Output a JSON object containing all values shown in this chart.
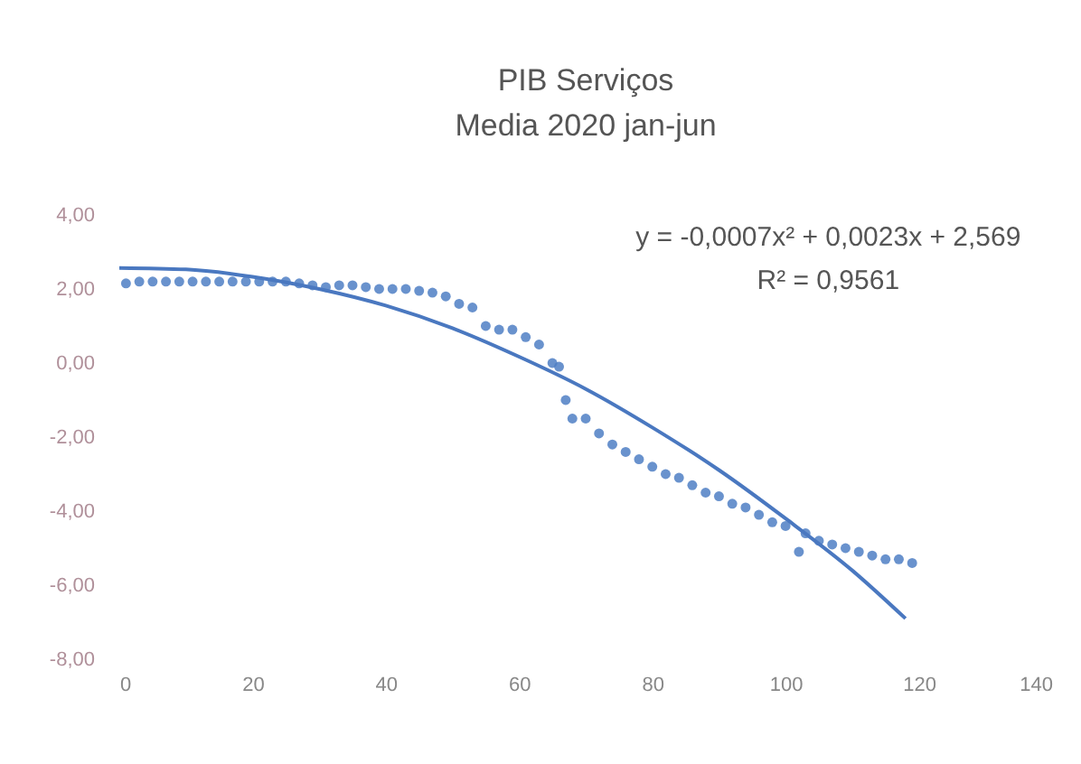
{
  "chart_data": {
    "type": "scatter",
    "title": "PIB Serviços",
    "subtitle": "Media 2020 jan-jun",
    "annotations": [
      "y = -0,0007x² + 0,0023x + 2,569",
      "R² = 0,9561"
    ],
    "xlim": [
      0,
      140
    ],
    "xticks": [
      0,
      20,
      40,
      60,
      80,
      100,
      120,
      140
    ],
    "ylim": [
      -8,
      4
    ],
    "yticks": [
      {
        "value": -8,
        "label": "-8,00"
      },
      {
        "value": -6,
        "label": "-6,00"
      },
      {
        "value": -4,
        "label": "-4,00"
      },
      {
        "value": -2,
        "label": "-2,00"
      },
      {
        "value": 0,
        "label": "0,00"
      },
      {
        "value": 2,
        "label": "2,00"
      },
      {
        "value": 4,
        "label": "4,00"
      }
    ],
    "series": [
      {
        "marker": "circle",
        "color": "#4f7fc4",
        "x": [
          1,
          3,
          5,
          7,
          9,
          11,
          13,
          15,
          17,
          19,
          21,
          23,
          25,
          27,
          29,
          31,
          33,
          35,
          37,
          39,
          41,
          43,
          45,
          47,
          49,
          51,
          53,
          55,
          57,
          59,
          61,
          63,
          65,
          66,
          67,
          68,
          70,
          72,
          74,
          76,
          78,
          80,
          82,
          84,
          86,
          88,
          90,
          92,
          94,
          96,
          98,
          100,
          102,
          103,
          105,
          107,
          109,
          111,
          113,
          115,
          117,
          119
        ],
        "values": [
          2.15,
          2.2,
          2.2,
          2.2,
          2.2,
          2.2,
          2.2,
          2.2,
          2.2,
          2.2,
          2.2,
          2.2,
          2.2,
          2.15,
          2.1,
          2.05,
          2.1,
          2.1,
          2.05,
          2.0,
          2.0,
          2.0,
          1.95,
          1.9,
          1.8,
          1.6,
          1.5,
          1.0,
          0.9,
          0.9,
          0.7,
          0.5,
          0.0,
          -0.1,
          -1.0,
          -1.5,
          -1.5,
          -1.9,
          -2.2,
          -2.4,
          -2.6,
          -2.8,
          -3.0,
          -3.1,
          -3.3,
          -3.5,
          -3.6,
          -3.8,
          -3.9,
          -4.1,
          -4.3,
          -4.4,
          -5.1,
          -4.6,
          -4.8,
          -4.9,
          -5.0,
          -5.1,
          -5.2,
          -5.3,
          -5.3,
          -5.4
        ]
      },
      {
        "type": "line",
        "color": "#4a78c0",
        "x": [
          0,
          10,
          20,
          30,
          40,
          50,
          60,
          70,
          80,
          90,
          100,
          110,
          118
        ],
        "values": [
          2.57,
          2.53,
          2.33,
          2.0,
          1.55,
          0.94,
          0.17,
          -0.7,
          -1.74,
          -2.89,
          -4.2,
          -5.6,
          -6.9
        ]
      }
    ]
  }
}
